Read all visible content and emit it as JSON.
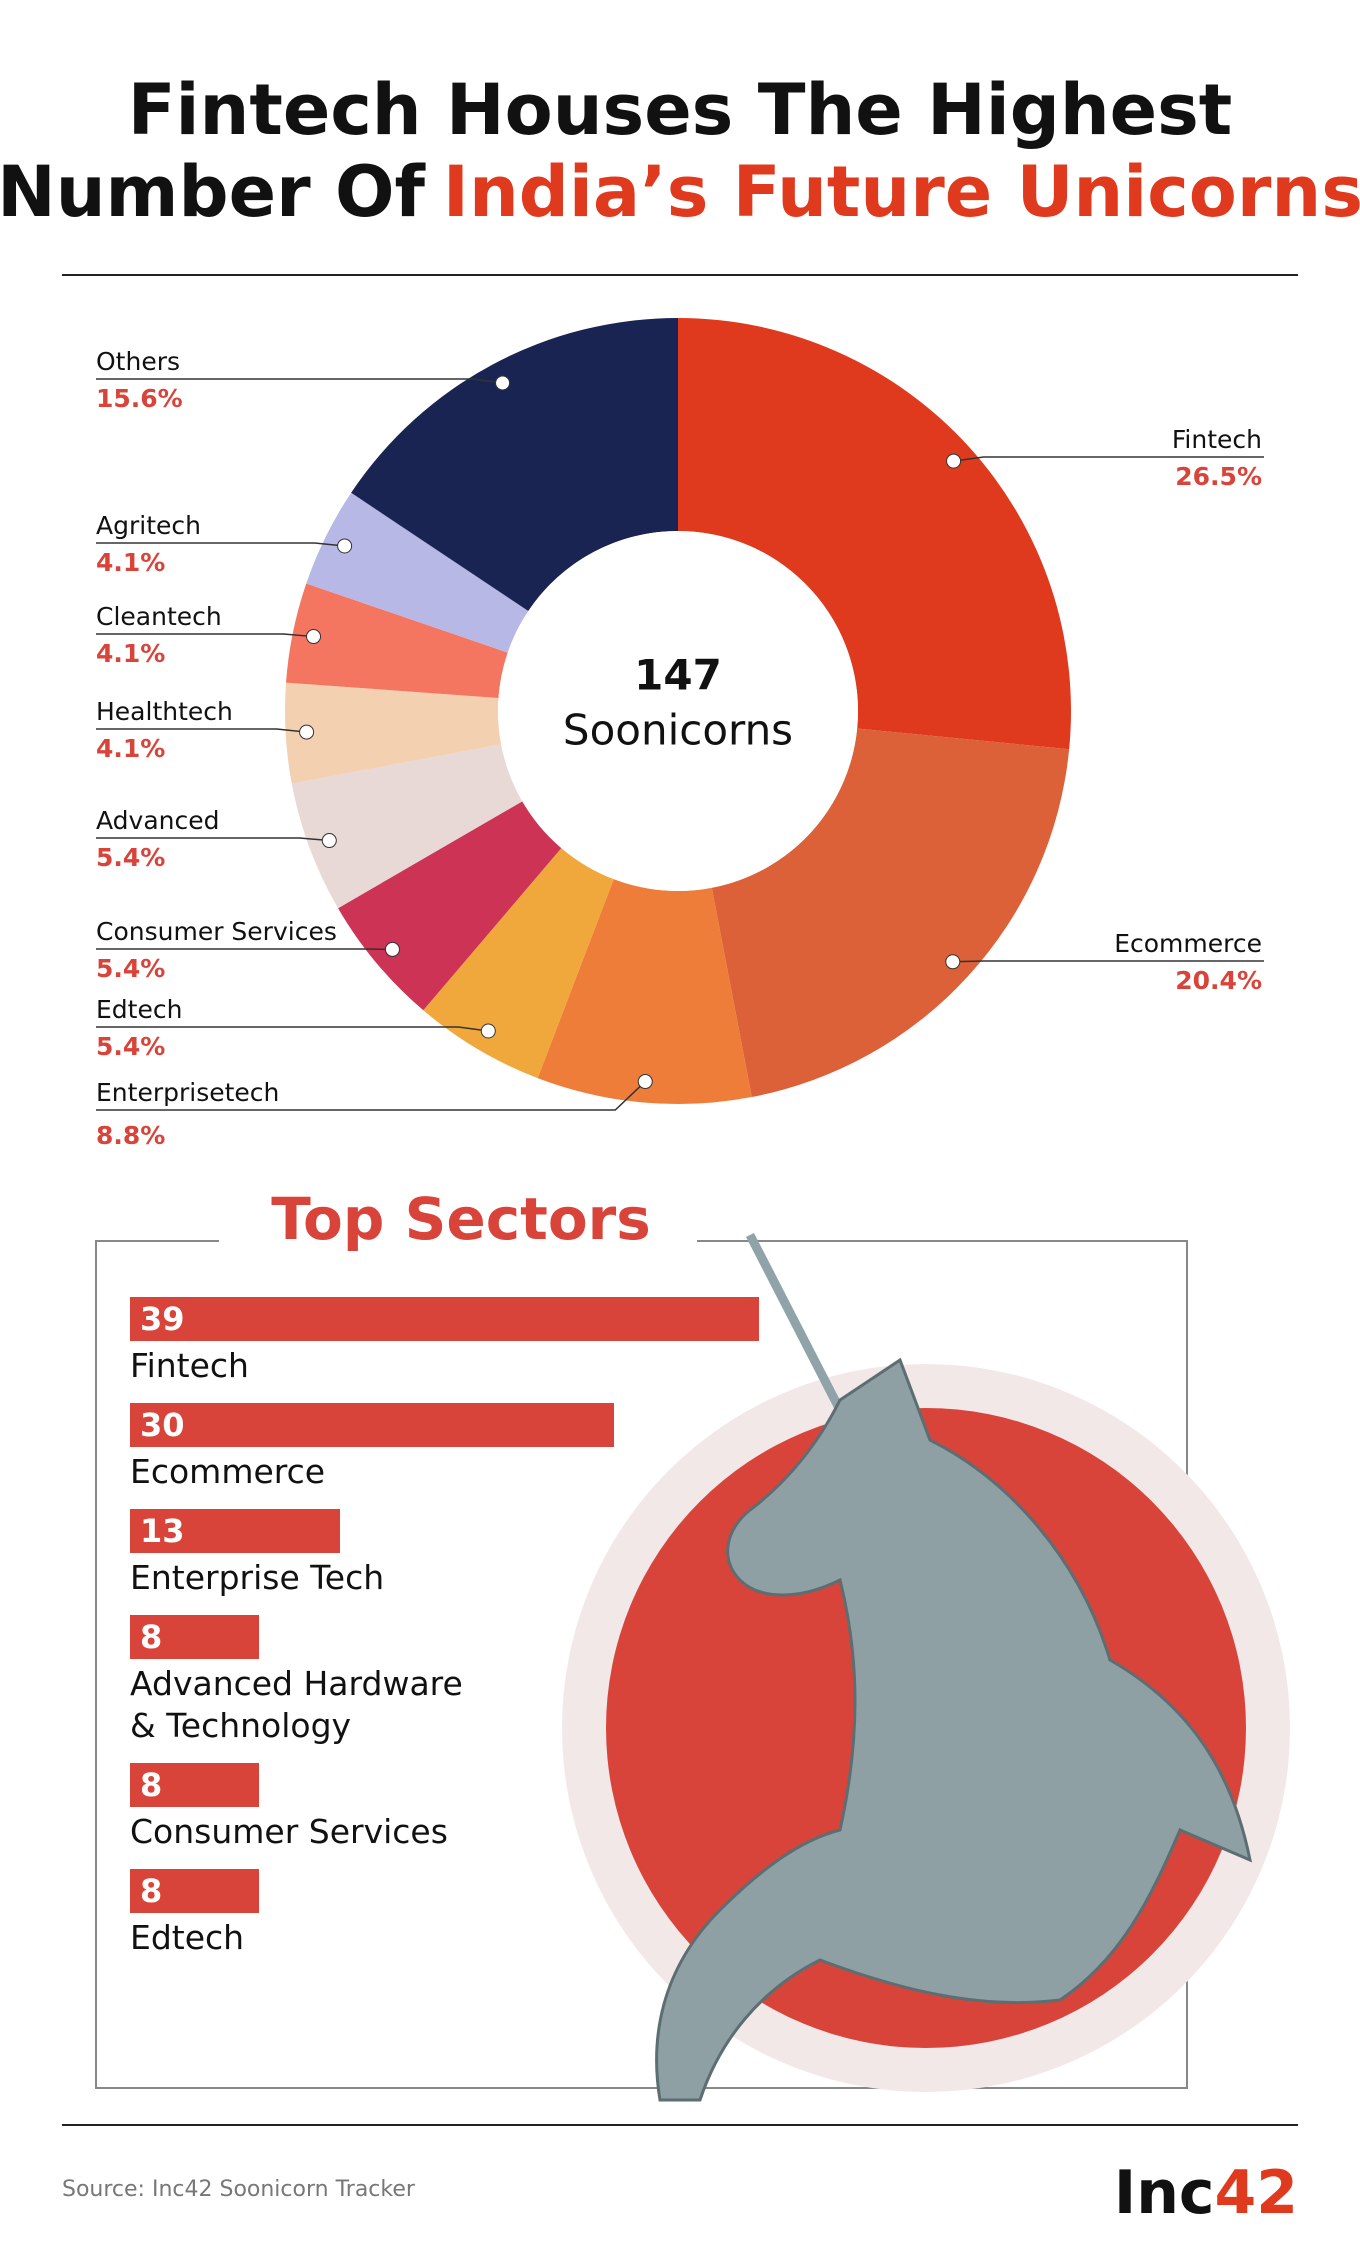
{
  "title_line_1": "Fintech Houses The Highest",
  "title_line_2_part_1": "Number Of",
  "title_line_2_highlight": "India’s Future Unicorns",
  "source": "Source: Inc42 Soonicorn Tracker",
  "logo": {
    "text": "Inc",
    "number": "42"
  },
  "chart_data": [
    {
      "type": "pie",
      "center_number": "147",
      "center_label": "Soonicorns",
      "categories": [
        "Fintech",
        "Ecommerce",
        "Enterprisetech",
        "Edtech",
        "Consumer Services",
        "Advanced",
        "Healthtech",
        "Cleantech",
        "Agritech",
        "Others"
      ],
      "values": [
        26.5,
        20.4,
        8.8,
        5.4,
        5.4,
        5.4,
        4.1,
        4.1,
        4.1,
        15.6
      ],
      "value_labels": [
        "26.5%",
        "20.4%",
        "8.8%",
        "5.4%",
        "5.4%",
        "5.4%",
        "4.1%",
        "4.1%",
        "4.1%",
        "15.6%"
      ],
      "colors": [
        "#e03a1e",
        "#dc6038",
        "#ee7d3a",
        "#f0a83c",
        "#cc3355",
        "#e8d8d6",
        "#f2d0b0",
        "#f47560",
        "#b8b8e6",
        "#1a2452"
      ]
    },
    {
      "type": "bar",
      "orientation": "horizontal",
      "title": "Top Sectors",
      "color": "#d9443a",
      "categories": [
        "Fintech",
        "Ecommerce",
        "Enterprise Tech",
        "Advanced Hardware & Technology",
        "Consumer Services",
        "Edtech"
      ],
      "values": [
        39,
        30,
        13,
        8,
        8,
        8
      ]
    }
  ]
}
